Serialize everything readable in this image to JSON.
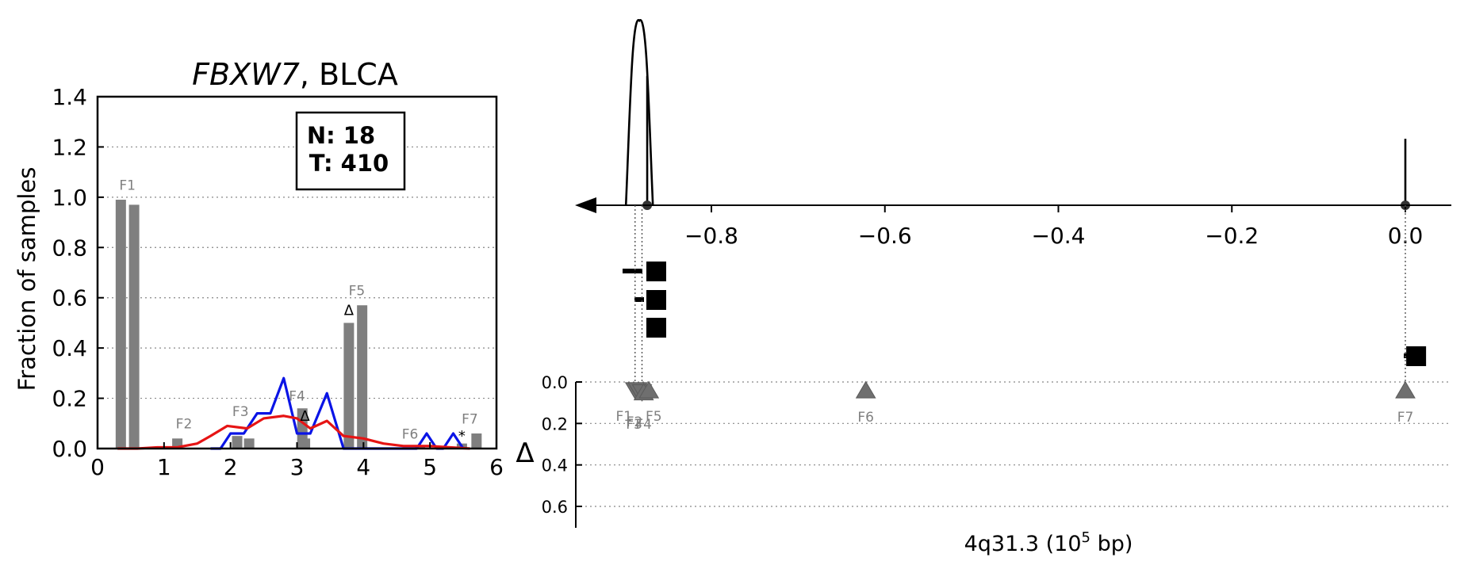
{
  "chart_data": [
    {
      "type": "bar",
      "title_gene": "FBXW7",
      "title_rest": ", BLCA",
      "ylabel": "Fraction of samples",
      "xlim": [
        0,
        6
      ],
      "ylim": [
        0,
        1.4
      ],
      "xticks": [
        "0",
        "1",
        "2",
        "3",
        "4",
        "5",
        "6"
      ],
      "yticks": [
        "0.0",
        "0.2",
        "0.4",
        "0.6",
        "0.8",
        "1.0",
        "1.2",
        "1.4"
      ],
      "grid": "horizontal-dotted",
      "legend_box": {
        "n_label": "N: 18",
        "t_label": "T: 410"
      },
      "bars": [
        {
          "x": 0.35,
          "value": 0.99
        },
        {
          "x": 0.55,
          "value": 0.97
        },
        {
          "x": 1.2,
          "value": 0.04
        },
        {
          "x": 2.1,
          "value": 0.05
        },
        {
          "x": 2.28,
          "value": 0.04
        },
        {
          "x": 3.08,
          "value": 0.16
        },
        {
          "x": 3.12,
          "value": 0.04
        },
        {
          "x": 3.78,
          "value": 0.5
        },
        {
          "x": 3.98,
          "value": 0.57
        },
        {
          "x": 4.85,
          "value": 0.01
        },
        {
          "x": 5.48,
          "value": 0.02
        },
        {
          "x": 5.7,
          "value": 0.06
        }
      ],
      "feature_labels": [
        {
          "label": "F1",
          "x": 0.45,
          "y": 1.03
        },
        {
          "label": "F2",
          "x": 1.3,
          "y": 0.08
        },
        {
          "label": "F3",
          "x": 2.15,
          "y": 0.13
        },
        {
          "label": "F4",
          "x": 3.0,
          "y": 0.19
        },
        {
          "label": "F5",
          "x": 3.9,
          "y": 0.61
        },
        {
          "label": "F6",
          "x": 4.7,
          "y": 0.04
        },
        {
          "label": "F7",
          "x": 5.6,
          "y": 0.1
        }
      ],
      "delta_markers": [
        {
          "x": 3.12,
          "y": 0.13,
          "symbol": "Δ"
        },
        {
          "x": 3.78,
          "y": 0.55,
          "symbol": "Δ"
        },
        {
          "x": 5.48,
          "y": 0.05,
          "symbol": "*"
        }
      ],
      "series": [
        {
          "color": "#0a14e6",
          "x": [
            1.7,
            1.85,
            2.0,
            2.2,
            2.4,
            2.6,
            2.8,
            3.0,
            3.2,
            3.45,
            3.7,
            3.95,
            4.4,
            4.6,
            4.8,
            4.95,
            5.1,
            5.2,
            5.35,
            5.5
          ],
          "y": [
            0.0,
            0.0,
            0.06,
            0.06,
            0.14,
            0.14,
            0.28,
            0.06,
            0.06,
            0.22,
            0.0,
            0.0,
            0.0,
            0.0,
            0.0,
            0.06,
            0.0,
            0.0,
            0.06,
            0.0
          ]
        },
        {
          "color": "#e61414",
          "x": [
            0.3,
            0.6,
            0.9,
            1.2,
            1.5,
            1.7,
            1.95,
            2.25,
            2.5,
            2.8,
            3.0,
            3.2,
            3.45,
            3.7,
            4.0,
            4.3,
            4.6,
            5.0,
            5.3,
            5.6
          ],
          "y": [
            0.0,
            0.0,
            0.005,
            0.005,
            0.02,
            0.05,
            0.09,
            0.08,
            0.12,
            0.13,
            0.12,
            0.08,
            0.11,
            0.05,
            0.04,
            0.02,
            0.01,
            0.01,
            0.005,
            0.0
          ]
        }
      ]
    },
    {
      "type": "genomic-track",
      "xlim": [
        -0.98,
        0.06
      ],
      "xticks": [
        "−0.8",
        "−0.6",
        "−0.4",
        "−0.2",
        "0.0"
      ],
      "xtick_values": [
        -0.8,
        -0.6,
        -0.4,
        -0.2,
        0.0
      ],
      "xlabel_main": "4q31.3 (10",
      "xlabel_sup": "5",
      "xlabel_tail": " bp)",
      "ylabel": "Δ",
      "ylim": [
        0.0,
        0.7
      ],
      "yticks": [
        "0.0",
        "0.2",
        "0.4",
        "0.6"
      ],
      "ytick_values": [
        0.0,
        0.2,
        0.4,
        0.6
      ],
      "density_peaks": [
        {
          "x": -0.883,
          "height": 1.0
        },
        {
          "x": -0.874,
          "height": 0.7
        },
        {
          "x": 0.0,
          "height": 0.36
        }
      ],
      "squares": [
        {
          "x": -0.864,
          "level": 0
        },
        {
          "x": -0.864,
          "level": 1
        },
        {
          "x": -0.864,
          "level": 2
        },
        {
          "x": 0.012,
          "level": 3
        }
      ],
      "features": [
        {
          "label": "F1",
          "x": -0.888,
          "delta": 0.04,
          "direction": "down"
        },
        {
          "label": "F2",
          "x": -0.885,
          "delta": 0.04,
          "direction": "down"
        },
        {
          "label": "F3",
          "x": -0.88,
          "delta": 0.05,
          "direction": "down"
        },
        {
          "label": "F4",
          "x": -0.878,
          "delta": 0.05,
          "direction": "up"
        },
        {
          "label": "F5",
          "x": -0.872,
          "delta": 0.04,
          "direction": "up"
        },
        {
          "label": "F6",
          "x": -0.622,
          "delta": 0.04,
          "direction": "up"
        },
        {
          "label": "F7",
          "x": 0.0,
          "delta": 0.04,
          "direction": "up"
        }
      ]
    }
  ]
}
